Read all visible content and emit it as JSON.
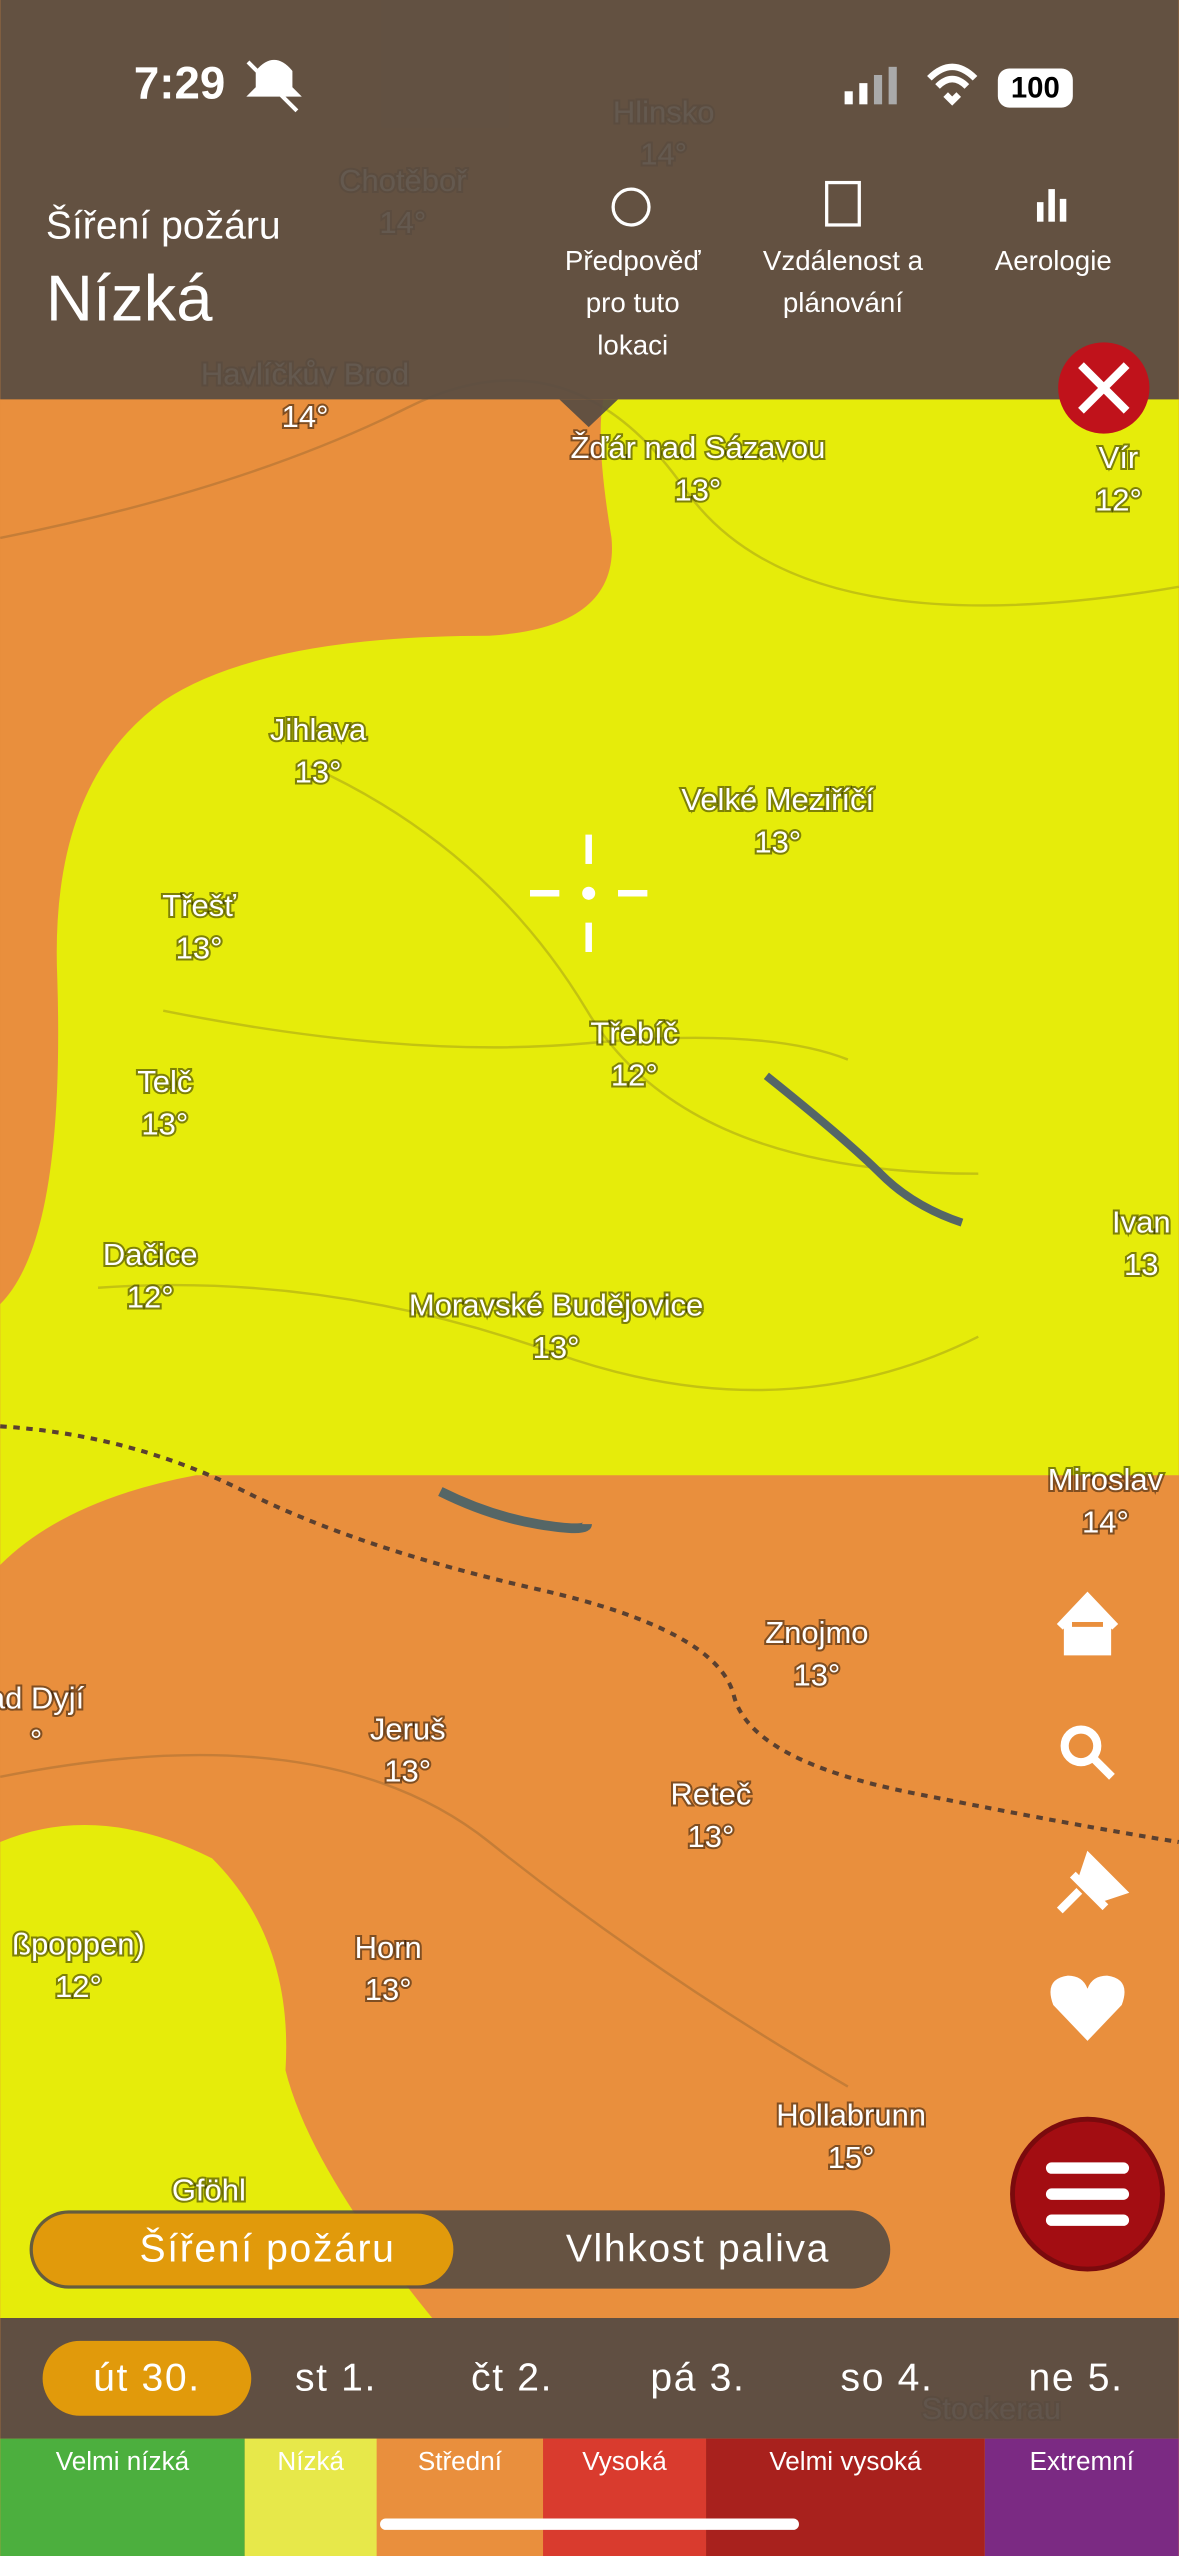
{
  "status_bar": {
    "time": "7:29",
    "battery": "100"
  },
  "header": {
    "subtitle": "Šíření požáru",
    "title": "Nízká",
    "actions": [
      {
        "lines": [
          "Předpověď",
          "pro tuto",
          "lokaci"
        ]
      },
      {
        "lines": [
          "Vzdálenost a",
          "plánování"
        ]
      },
      {
        "lines": [
          "Aerologie"
        ]
      }
    ]
  },
  "map": {
    "places": [
      {
        "name": "Hlinsko",
        "temp": "14°"
      },
      {
        "name": "Chotěboř",
        "temp": "14°"
      },
      {
        "name": "Havlíčkův Brod",
        "temp": "14°"
      },
      {
        "name": "Žďár nad Sázavou",
        "temp": "13°"
      },
      {
        "name": "Vír",
        "temp": "12°"
      },
      {
        "name": "Jihlava",
        "temp": "13°"
      },
      {
        "name": "Velké Meziříčí",
        "temp": "13°"
      },
      {
        "name": "Třešť",
        "temp": "13°"
      },
      {
        "name": "Třebíč",
        "temp": "12°"
      },
      {
        "name": "Telč",
        "temp": "13°"
      },
      {
        "name": "Dačice",
        "temp": "12°"
      },
      {
        "name": "Moravské Budějovice",
        "temp": "13°"
      },
      {
        "name": "Ivan",
        "temp": "13"
      },
      {
        "name": "Miroslav",
        "temp": "14°"
      },
      {
        "name": "Znojmo",
        "temp": "13°"
      },
      {
        "name": "ad Dyjí",
        "temp": "°"
      },
      {
        "name": "Jeruš",
        "temp": "13°"
      },
      {
        "name": "Reteč",
        "temp": "13°"
      },
      {
        "name": "ßpoppen)",
        "temp": "12°"
      },
      {
        "name": "Horn",
        "temp": "13°"
      },
      {
        "name": "Hollabrunn",
        "temp": "15°"
      },
      {
        "name": "Gföhl",
        "temp": null
      },
      {
        "name": "Stockerau",
        "temp": null
      }
    ]
  },
  "layer_toggle": [
    "Šíření požáru",
    "Vlhkost paliva"
  ],
  "days": [
    "út 30.",
    "st 1.",
    "čt 2.",
    "pá 3.",
    "so 4.",
    "ne 5."
  ],
  "legend": [
    "Velmi nízká",
    "Nízká",
    "Střední",
    "Vysoká",
    "Velmi vysoká",
    "Extremní"
  ]
}
